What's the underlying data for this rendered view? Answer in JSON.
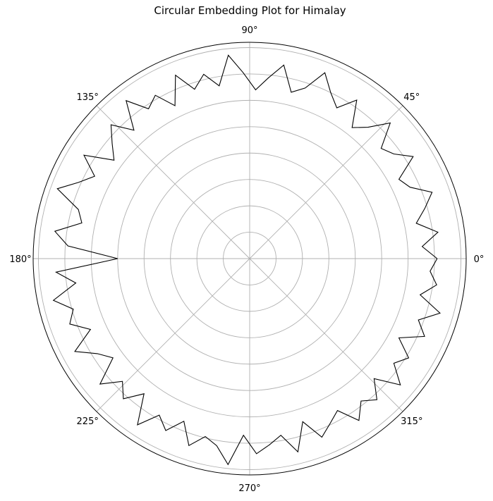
{
  "chart_data": {
    "type": "line",
    "projection": "polar",
    "title": "Circular Embedding Plot for Himalay",
    "angle_unit": "degrees",
    "theta_ticks": [
      0,
      45,
      90,
      135,
      180,
      225,
      270,
      315
    ],
    "theta_tick_labels": [
      "0°",
      "45°",
      "90°",
      "135°",
      "180°",
      "225°",
      "270°",
      "315°"
    ],
    "r_gridlines": [
      0.2,
      0.4,
      0.6,
      0.8,
      1.0,
      1.2,
      1.4,
      1.6
    ],
    "r_tick_labels_visible": false,
    "rlim": [
      0,
      1.64
    ],
    "grid": true,
    "line_color": "#000000",
    "grid_color": "#b0b0b0",
    "series": [
      {
        "theta": [
          0,
          4,
          8,
          12,
          16,
          20,
          24,
          28,
          32,
          36,
          40,
          44,
          48,
          52,
          56,
          60,
          64,
          68,
          72,
          76,
          80,
          84,
          88,
          92,
          96,
          100,
          104,
          108,
          112,
          116,
          120,
          124,
          128,
          132,
          136,
          140,
          144,
          148,
          152,
          156,
          160,
          164,
          168,
          172,
          176,
          180,
          184,
          188,
          192,
          196,
          200,
          204,
          208,
          212,
          216,
          220,
          224,
          228,
          232,
          236,
          240,
          244,
          248,
          252,
          256,
          260,
          264,
          268,
          272,
          276,
          280,
          284,
          288,
          292,
          296,
          300,
          304,
          308,
          312,
          316,
          320,
          324,
          328,
          332,
          336,
          340,
          344,
          348,
          352,
          356
        ],
        "r": [
          1.42,
          1.31,
          1.44,
          1.29,
          1.38,
          1.47,
          1.33,
          1.28,
          1.46,
          1.35,
          1.3,
          1.48,
          1.34,
          1.26,
          1.45,
          1.32,
          1.4,
          1.52,
          1.36,
          1.3,
          1.49,
          1.38,
          1.28,
          1.41,
          1.55,
          1.33,
          1.44,
          1.35,
          1.5,
          1.29,
          1.43,
          1.37,
          1.52,
          1.31,
          1.46,
          1.36,
          1.27,
          1.48,
          1.33,
          1.42,
          1.55,
          1.35,
          1.3,
          1.49,
          1.38,
          1.0,
          1.47,
          1.33,
          1.52,
          1.39,
          1.45,
          1.32,
          1.5,
          1.36,
          1.28,
          1.48,
          1.34,
          1.43,
          1.3,
          1.52,
          1.37,
          1.45,
          1.33,
          1.49,
          1.39,
          1.44,
          1.57,
          1.34,
          1.48,
          1.42,
          1.36,
          1.51,
          1.3,
          1.46,
          1.39,
          1.33,
          1.48,
          1.37,
          1.44,
          1.31,
          1.49,
          1.35,
          1.42,
          1.28,
          1.45,
          1.36,
          1.5,
          1.32,
          1.43,
          1.37
        ]
      }
    ]
  }
}
